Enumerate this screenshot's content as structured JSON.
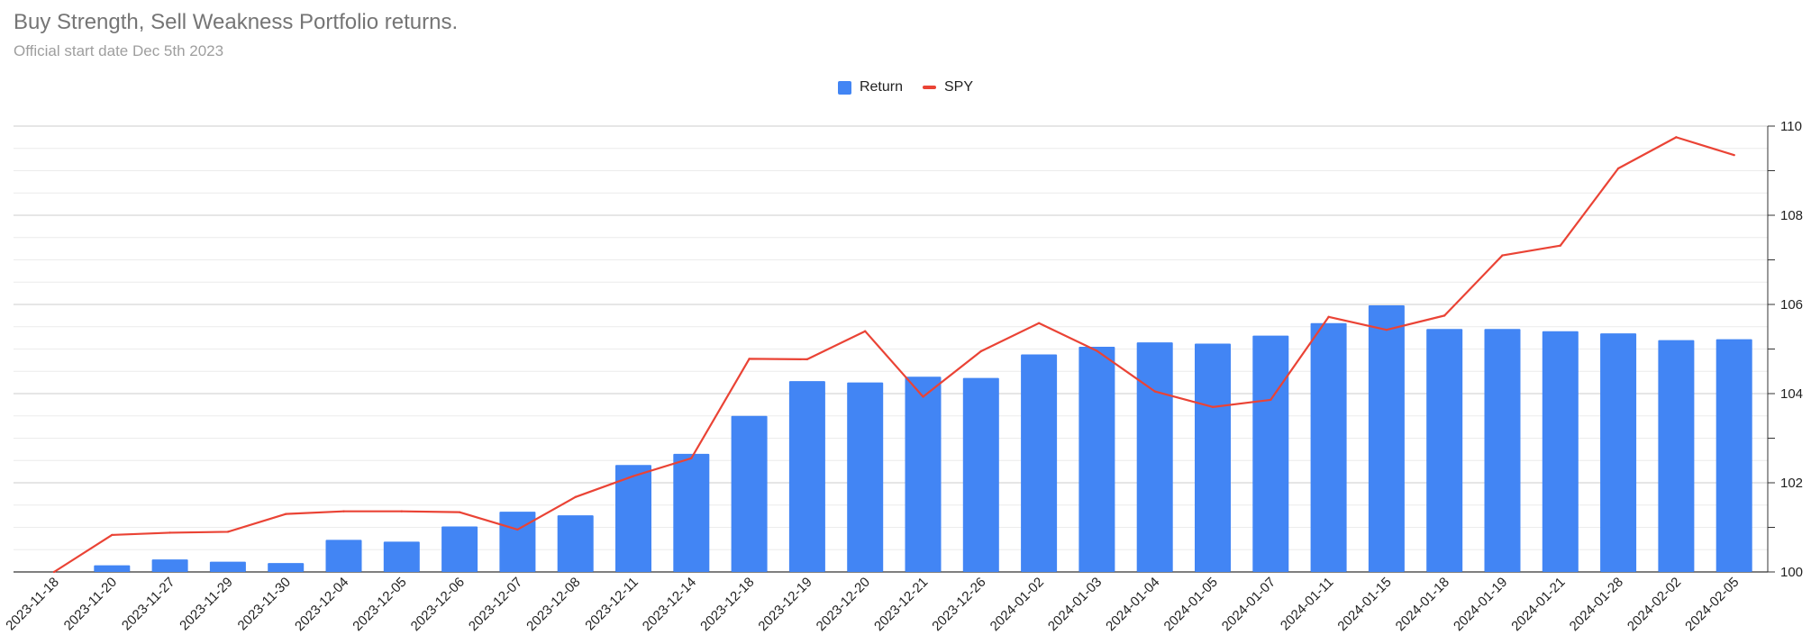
{
  "chart_data": {
    "type": "bar",
    "title": "Buy Strength, Sell Weakness Portfolio returns.",
    "subtitle": "Official start date Dec 5th 2023",
    "legend_position": "top",
    "grid": true,
    "categories": [
      "2023-11-18",
      "2023-11-20",
      "2023-11-27",
      "2023-11-29",
      "2023-11-30",
      "2023-12-04",
      "2023-12-05",
      "2023-12-06",
      "2023-12-07",
      "2023-12-08",
      "2023-12-11",
      "2023-12-14",
      "2023-12-18",
      "2023-12-19",
      "2023-12-20",
      "2023-12-21",
      "2023-12-26",
      "2024-01-02",
      "2024-01-03",
      "2024-01-04",
      "2024-01-05",
      "2024-01-07",
      "2024-01-11",
      "2024-01-15",
      "2024-01-18",
      "2024-01-19",
      "2024-01-21",
      "2024-01-28",
      "2024-02-02",
      "2024-02-05"
    ],
    "series": [
      {
        "name": "Return",
        "kind": "bar",
        "color": "#4285f4",
        "values": [
          100,
          100.15,
          100.28,
          100.23,
          100.2,
          100.72,
          100.68,
          101.02,
          101.35,
          101.27,
          102.4,
          102.65,
          103.5,
          104.28,
          104.25,
          104.38,
          104.35,
          104.88,
          105.05,
          105.15,
          105.12,
          105.3,
          105.58,
          105.98,
          105.45,
          105.45,
          105.4,
          105.35,
          105.2,
          105.22
        ]
      },
      {
        "name": "SPY",
        "kind": "line",
        "color": "#ea4335",
        "values": [
          100,
          100.83,
          100.88,
          100.9,
          101.3,
          101.36,
          101.36,
          101.34,
          100.95,
          101.68,
          102.15,
          102.55,
          104.78,
          104.77,
          105.4,
          103.93,
          104.95,
          105.58,
          104.96,
          104.05,
          103.7,
          103.86,
          105.72,
          105.43,
          105.75,
          107.1,
          107.32,
          109.05,
          109.75,
          109.35
        ]
      }
    ],
    "y_axis": {
      "side": "right",
      "min": 100,
      "max": 110,
      "ticks": [
        100,
        102,
        104,
        106,
        108,
        110
      ]
    }
  }
}
